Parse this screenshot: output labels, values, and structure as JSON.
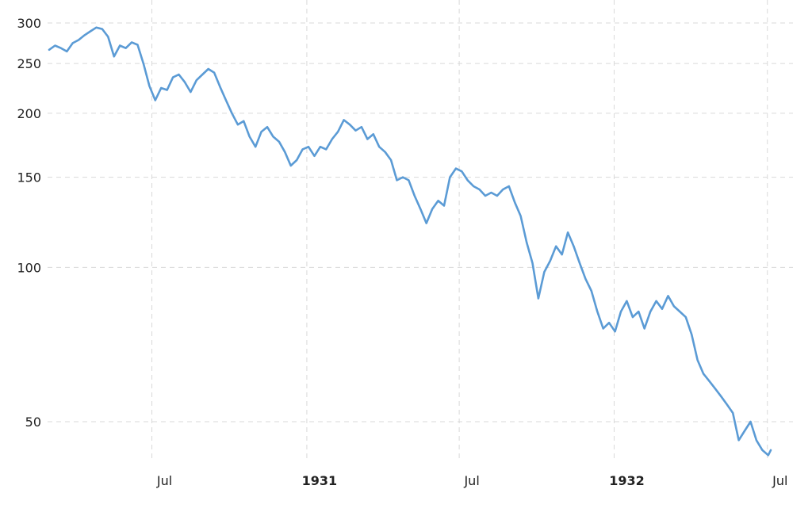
{
  "chart_data": {
    "type": "line",
    "title": "",
    "xlabel": "",
    "ylabel": "",
    "y_scale": "log",
    "ylim": [
      40,
      300
    ],
    "xlim": [
      "1930-03-01",
      "1932-07-05"
    ],
    "grid": true,
    "legend": "none",
    "line_color": "#5b9bd5",
    "y_ticks": [
      {
        "value": 300,
        "label": "300"
      },
      {
        "value": 250,
        "label": "250"
      },
      {
        "value": 200,
        "label": "200"
      },
      {
        "value": 150,
        "label": "150"
      },
      {
        "value": 100,
        "label": "100"
      },
      {
        "value": 50,
        "label": "50"
      }
    ],
    "x_ticks": [
      {
        "date": "1930-07-01",
        "label": "Jul",
        "bold": false
      },
      {
        "date": "1931-01-01",
        "label": "1931",
        "bold": true
      },
      {
        "date": "1931-07-01",
        "label": "Jul",
        "bold": false
      },
      {
        "date": "1932-01-01",
        "label": "1932",
        "bold": true
      },
      {
        "date": "1932-07-01",
        "label": "Jul",
        "bold": false
      }
    ],
    "series": [
      {
        "points": [
          [
            "1930-03-01",
            266
          ],
          [
            "1930-03-08",
            271
          ],
          [
            "1930-03-15",
            268
          ],
          [
            "1930-03-22",
            264
          ],
          [
            "1930-03-29",
            274
          ],
          [
            "1930-04-05",
            278
          ],
          [
            "1930-04-12",
            284
          ],
          [
            "1930-04-19",
            289
          ],
          [
            "1930-04-26",
            294
          ],
          [
            "1930-05-03",
            292
          ],
          [
            "1930-05-10",
            282
          ],
          [
            "1930-05-17",
            258
          ],
          [
            "1930-05-24",
            271
          ],
          [
            "1930-05-31",
            268
          ],
          [
            "1930-06-07",
            275
          ],
          [
            "1930-06-14",
            272
          ],
          [
            "1930-06-21",
            250
          ],
          [
            "1930-06-28",
            226
          ],
          [
            "1930-07-05",
            212
          ],
          [
            "1930-07-12",
            224
          ],
          [
            "1930-07-19",
            222
          ],
          [
            "1930-07-26",
            235
          ],
          [
            "1930-08-02",
            238
          ],
          [
            "1930-08-09",
            230
          ],
          [
            "1930-08-16",
            220
          ],
          [
            "1930-08-23",
            232
          ],
          [
            "1930-08-30",
            238
          ],
          [
            "1930-09-06",
            244
          ],
          [
            "1930-09-13",
            240
          ],
          [
            "1930-09-20",
            225
          ],
          [
            "1930-09-27",
            212
          ],
          [
            "1930-10-04",
            200
          ],
          [
            "1930-10-11",
            190
          ],
          [
            "1930-10-18",
            193
          ],
          [
            "1930-10-25",
            180
          ],
          [
            "1930-11-01",
            172
          ],
          [
            "1930-11-08",
            184
          ],
          [
            "1930-11-15",
            188
          ],
          [
            "1930-11-22",
            180
          ],
          [
            "1930-11-29",
            176
          ],
          [
            "1930-12-06",
            168
          ],
          [
            "1930-12-13",
            158
          ],
          [
            "1930-12-20",
            162
          ],
          [
            "1930-12-27",
            170
          ],
          [
            "1931-01-03",
            172
          ],
          [
            "1931-01-10",
            165
          ],
          [
            "1931-01-17",
            172
          ],
          [
            "1931-01-24",
            170
          ],
          [
            "1931-01-31",
            178
          ],
          [
            "1931-02-07",
            184
          ],
          [
            "1931-02-14",
            194
          ],
          [
            "1931-02-21",
            190
          ],
          [
            "1931-02-28",
            185
          ],
          [
            "1931-03-07",
            188
          ],
          [
            "1931-03-14",
            178
          ],
          [
            "1931-03-21",
            182
          ],
          [
            "1931-03-28",
            172
          ],
          [
            "1931-04-04",
            168
          ],
          [
            "1931-04-11",
            162
          ],
          [
            "1931-04-18",
            148
          ],
          [
            "1931-04-25",
            150
          ],
          [
            "1931-05-02",
            148
          ],
          [
            "1931-05-09",
            138
          ],
          [
            "1931-05-16",
            130
          ],
          [
            "1931-05-23",
            122
          ],
          [
            "1931-05-30",
            130
          ],
          [
            "1931-06-06",
            135
          ],
          [
            "1931-06-13",
            132
          ],
          [
            "1931-06-20",
            150
          ],
          [
            "1931-06-27",
            156
          ],
          [
            "1931-07-04",
            154
          ],
          [
            "1931-07-11",
            148
          ],
          [
            "1931-07-18",
            144
          ],
          [
            "1931-07-25",
            142
          ],
          [
            "1931-08-01",
            138
          ],
          [
            "1931-08-08",
            140
          ],
          [
            "1931-08-15",
            138
          ],
          [
            "1931-08-22",
            142
          ],
          [
            "1931-08-29",
            144
          ],
          [
            "1931-09-05",
            134
          ],
          [
            "1931-09-12",
            126
          ],
          [
            "1931-09-19",
            112
          ],
          [
            "1931-09-26",
            102
          ],
          [
            "1931-10-03",
            87
          ],
          [
            "1931-10-10",
            98
          ],
          [
            "1931-10-17",
            103
          ],
          [
            "1931-10-24",
            110
          ],
          [
            "1931-10-31",
            106
          ],
          [
            "1931-11-07",
            117
          ],
          [
            "1931-11-14",
            110
          ],
          [
            "1931-11-21",
            102
          ],
          [
            "1931-11-28",
            95
          ],
          [
            "1931-12-05",
            90
          ],
          [
            "1931-12-12",
            82
          ],
          [
            "1931-12-19",
            76
          ],
          [
            "1931-12-26",
            78
          ],
          [
            "1932-01-02",
            75
          ],
          [
            "1932-01-09",
            82
          ],
          [
            "1932-01-16",
            86
          ],
          [
            "1932-01-23",
            80
          ],
          [
            "1932-01-30",
            82
          ],
          [
            "1932-02-06",
            76
          ],
          [
            "1932-02-13",
            82
          ],
          [
            "1932-02-20",
            86
          ],
          [
            "1932-02-27",
            83
          ],
          [
            "1932-03-05",
            88
          ],
          [
            "1932-03-12",
            84
          ],
          [
            "1932-03-19",
            82
          ],
          [
            "1932-03-26",
            80
          ],
          [
            "1932-04-02",
            74
          ],
          [
            "1932-04-09",
            66
          ],
          [
            "1932-04-16",
            62
          ],
          [
            "1932-04-23",
            60
          ],
          [
            "1932-04-30",
            58
          ],
          [
            "1932-05-07",
            56
          ],
          [
            "1932-05-14",
            54
          ],
          [
            "1932-05-21",
            52
          ],
          [
            "1932-05-28",
            46
          ],
          [
            "1932-06-04",
            48
          ],
          [
            "1932-06-11",
            50
          ],
          [
            "1932-06-18",
            46
          ],
          [
            "1932-06-25",
            44
          ],
          [
            "1932-07-02",
            43
          ],
          [
            "1932-07-05",
            44
          ]
        ]
      }
    ]
  }
}
